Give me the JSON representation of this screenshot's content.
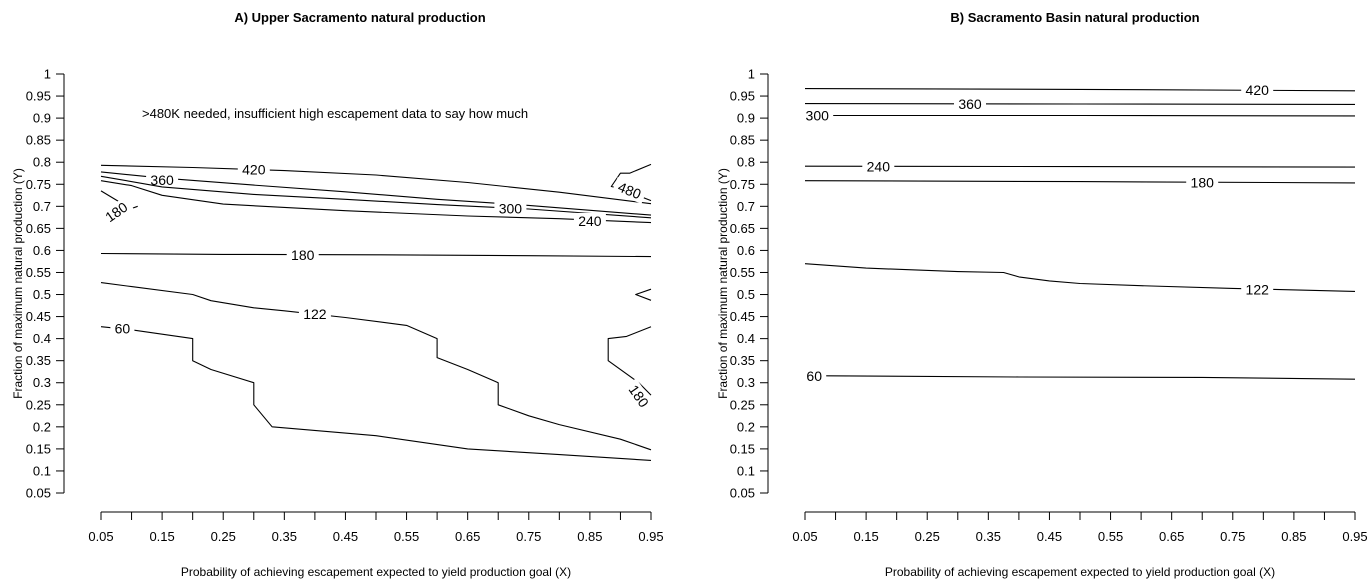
{
  "chart_data": [
    {
      "type": "contour",
      "title": "A) Upper Sacramento natural production",
      "xlabel": "Probability of achieving escapement expected to yield production goal (X)",
      "ylabel": "Fraction of maximum natural production (Y)",
      "xlim": [
        0.05,
        0.95
      ],
      "ylim": [
        0.05,
        1
      ],
      "xticks": [
        "0.05",
        "0.15",
        "0.25",
        "0.35",
        "0.45",
        "0.55",
        "0.65",
        "0.75",
        "0.85",
        "0.95"
      ],
      "yticks": [
        "0.05",
        "0.1",
        "0.15",
        "0.2",
        "0.25",
        "0.3",
        "0.35",
        "0.4",
        "0.45",
        "0.5",
        "0.55",
        "0.6",
        "0.65",
        "0.7",
        "0.75",
        "0.8",
        "0.85",
        "0.9",
        "0.95",
        "1"
      ],
      "annotation": ">480K needed, insufficient high escapement data to say how much",
      "grid": false,
      "contours": [
        {
          "level": "420",
          "points": [
            [
              0.05,
              0.793
            ],
            [
              0.2,
              0.788
            ],
            [
              0.35,
              0.781
            ],
            [
              0.5,
              0.771
            ],
            [
              0.65,
              0.754
            ],
            [
              0.8,
              0.732
            ],
            [
              0.95,
              0.706
            ]
          ],
          "labels": [
            {
              "text": "420",
              "x": 0.3,
              "y": 0.784
            }
          ]
        },
        {
          "level": "360",
          "points": [
            [
              0.05,
              0.778
            ],
            [
              0.15,
              0.764
            ],
            [
              0.3,
              0.748
            ],
            [
              0.45,
              0.733
            ],
            [
              0.6,
              0.716
            ],
            [
              0.75,
              0.702
            ],
            [
              0.95,
              0.68
            ]
          ],
          "labels": [
            {
              "text": "360",
              "x": 0.15,
              "y": 0.76
            }
          ]
        },
        {
          "level": "300",
          "points": [
            [
              0.05,
              0.768
            ],
            [
              0.15,
              0.744
            ],
            [
              0.3,
              0.727
            ],
            [
              0.45,
              0.716
            ],
            [
              0.6,
              0.704
            ],
            [
              0.75,
              0.694
            ],
            [
              0.95,
              0.674
            ]
          ],
          "labels": [
            {
              "text": "300",
              "x": 0.72,
              "y": 0.695
            }
          ]
        },
        {
          "level": "240",
          "points": [
            [
              0.05,
              0.758
            ],
            [
              0.1,
              0.747
            ],
            [
              0.15,
              0.725
            ],
            [
              0.25,
              0.705
            ],
            [
              0.45,
              0.69
            ],
            [
              0.65,
              0.678
            ],
            [
              0.8,
              0.672
            ],
            [
              0.95,
              0.663
            ]
          ],
          "labels": [
            {
              "text": "240",
              "x": 0.85,
              "y": 0.667
            }
          ]
        },
        {
          "level": "180",
          "points": [
            [
              0.05,
              0.593
            ],
            [
              0.25,
              0.591
            ],
            [
              0.5,
              0.59
            ],
            [
              0.75,
              0.588
            ],
            [
              0.95,
              0.586
            ]
          ],
          "labels": [
            {
              "text": "180",
              "x": 0.38,
              "y": 0.59
            }
          ]
        },
        {
          "level": "180",
          "points": [
            [
              0.05,
              0.735
            ],
            [
              0.08,
              0.71
            ],
            [
              0.1,
              0.695
            ],
            [
              0.11,
              0.7
            ]
          ],
          "labels": [
            {
              "text": "180",
              "x": 0.075,
              "y": 0.687,
              "rot": -35
            }
          ]
        },
        {
          "level": "180",
          "points": [
            [
              0.95,
              0.427
            ],
            [
              0.91,
              0.405
            ],
            [
              0.88,
              0.4
            ],
            [
              0.88,
              0.35
            ],
            [
              0.93,
              0.3
            ],
            [
              0.95,
              0.272
            ]
          ],
          "labels": [
            {
              "text": "180",
              "x": 0.93,
              "y": 0.27,
              "rot": 55
            }
          ]
        },
        {
          "level": "480",
          "points": [
            [
              0.95,
              0.795
            ],
            [
              0.915,
              0.775
            ],
            [
              0.9,
              0.775
            ],
            [
              0.885,
              0.745
            ],
            [
              0.9,
              0.74
            ],
            [
              0.95,
              0.713
            ]
          ],
          "labels": [
            {
              "text": "480",
              "x": 0.915,
              "y": 0.736,
              "rot": 22
            }
          ]
        },
        {
          "level": "",
          "points": [
            [
              0.95,
              0.512
            ],
            [
              0.925,
              0.5
            ],
            [
              0.95,
              0.487
            ]
          ],
          "labels": []
        },
        {
          "level": "122",
          "points": [
            [
              0.05,
              0.527
            ],
            [
              0.1,
              0.518
            ],
            [
              0.2,
              0.5
            ],
            [
              0.23,
              0.486
            ],
            [
              0.3,
              0.47
            ],
            [
              0.35,
              0.463
            ],
            [
              0.45,
              0.448
            ],
            [
              0.55,
              0.43
            ],
            [
              0.6,
              0.4
            ],
            [
              0.6,
              0.357
            ],
            [
              0.65,
              0.33
            ],
            [
              0.7,
              0.3
            ],
            [
              0.7,
              0.25
            ],
            [
              0.75,
              0.225
            ],
            [
              0.8,
              0.205
            ],
            [
              0.9,
              0.172
            ],
            [
              0.95,
              0.148
            ]
          ],
          "labels": [
            {
              "text": "122",
              "x": 0.4,
              "y": 0.456
            }
          ]
        },
        {
          "level": "60",
          "points": [
            [
              0.05,
              0.427
            ],
            [
              0.1,
              0.42
            ],
            [
              0.2,
              0.4
            ],
            [
              0.2,
              0.35
            ],
            [
              0.23,
              0.33
            ],
            [
              0.3,
              0.3
            ],
            [
              0.3,
              0.25
            ],
            [
              0.33,
              0.2
            ],
            [
              0.5,
              0.18
            ],
            [
              0.65,
              0.15
            ],
            [
              0.8,
              0.137
            ],
            [
              0.95,
              0.124
            ]
          ],
          "labels": [
            {
              "text": "60",
              "x": 0.085,
              "y": 0.423
            }
          ]
        }
      ]
    },
    {
      "type": "contour",
      "title": "B) Sacramento Basin natural production",
      "xlabel": "Probability of achieving escapement expected to yield production goal (X)",
      "ylabel": "Fraction of maximum natural production (Y)",
      "xlim": [
        0.05,
        0.95
      ],
      "ylim": [
        0.05,
        1
      ],
      "xticks": [
        "0.05",
        "0.15",
        "0.25",
        "0.35",
        "0.45",
        "0.55",
        "0.65",
        "0.75",
        "0.85",
        "0.95"
      ],
      "yticks": [
        "0.05",
        "0.1",
        "0.15",
        "0.2",
        "0.25",
        "0.3",
        "0.35",
        "0.4",
        "0.45",
        "0.5",
        "0.55",
        "0.6",
        "0.65",
        "0.7",
        "0.75",
        "0.8",
        "0.85",
        "0.9",
        "0.95",
        "1"
      ],
      "grid": false,
      "contours": [
        {
          "level": "420",
          "points": [
            [
              0.05,
              0.967
            ],
            [
              0.5,
              0.965
            ],
            [
              0.95,
              0.962
            ]
          ],
          "labels": [
            {
              "text": "420",
              "x": 0.79,
              "y": 0.964
            }
          ]
        },
        {
          "level": "360",
          "points": [
            [
              0.05,
              0.933
            ],
            [
              0.5,
              0.932
            ],
            [
              0.95,
              0.931
            ]
          ],
          "labels": [
            {
              "text": "360",
              "x": 0.32,
              "y": 0.932
            }
          ]
        },
        {
          "level": "300",
          "points": [
            [
              0.05,
              0.906
            ],
            [
              0.5,
              0.906
            ],
            [
              0.95,
              0.905
            ]
          ],
          "labels": [
            {
              "text": "300",
              "x": 0.07,
              "y": 0.906
            }
          ]
        },
        {
          "level": "240",
          "points": [
            [
              0.05,
              0.791
            ],
            [
              0.5,
              0.79
            ],
            [
              0.95,
              0.789
            ]
          ],
          "labels": [
            {
              "text": "240",
              "x": 0.17,
              "y": 0.79
            }
          ]
        },
        {
          "level": "180",
          "points": [
            [
              0.05,
              0.758
            ],
            [
              0.5,
              0.756
            ],
            [
              0.95,
              0.753
            ]
          ],
          "labels": [
            {
              "text": "180",
              "x": 0.7,
              "y": 0.754
            }
          ]
        },
        {
          "level": "122",
          "points": [
            [
              0.05,
              0.57
            ],
            [
              0.15,
              0.56
            ],
            [
              0.3,
              0.552
            ],
            [
              0.375,
              0.55
            ],
            [
              0.4,
              0.54
            ],
            [
              0.45,
              0.531
            ],
            [
              0.5,
              0.525
            ],
            [
              0.6,
              0.52
            ],
            [
              0.75,
              0.514
            ],
            [
              0.95,
              0.507
            ]
          ],
          "labels": [
            {
              "text": "122",
              "x": 0.79,
              "y": 0.511
            }
          ]
        },
        {
          "level": "60",
          "points": [
            [
              0.05,
              0.316
            ],
            [
              0.4,
              0.313
            ],
            [
              0.7,
              0.312
            ],
            [
              0.95,
              0.308
            ]
          ],
          "labels": [
            {
              "text": "60",
              "x": 0.065,
              "y": 0.315
            }
          ]
        }
      ]
    }
  ]
}
